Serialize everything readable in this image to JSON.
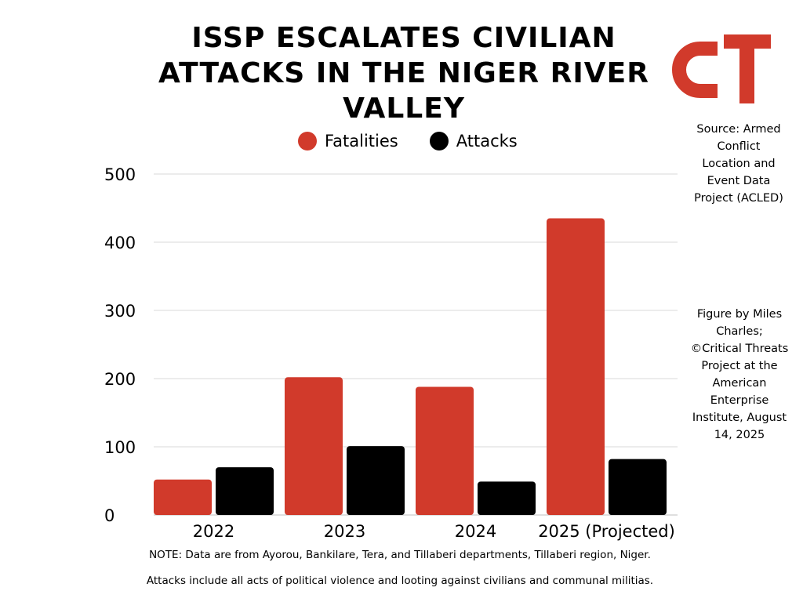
{
  "header": {
    "title": "ISSP ESCALATES CIVILIAN ATTACKS IN THE NIGER RIVER VALLEY"
  },
  "logo": {
    "text": "CT",
    "color": "#d13a2b"
  },
  "source_note": "Source: Armed Conflict Location and Event Data Project (ACLED)",
  "credit_note": "Figure by Miles Charles; ©Critical Threats Project at the American Enterprise Institute, August 14, 2025",
  "footnotes": {
    "line1": "NOTE: Data are from Ayorou, Bankilare, Tera, and Tillaberi departments, Tillaberi region, Niger.",
    "line2": "Attacks include all acts of political violence and looting against civilians and communal militias."
  },
  "chart_data": {
    "type": "bar",
    "title": "ISSP ESCALATES CIVILIAN ATTACKS IN THE NIGER RIVER VALLEY",
    "categories": [
      "2022",
      "2023",
      "2024",
      "2025 (Projected)"
    ],
    "series": [
      {
        "name": "Fatalities",
        "color": "#d13a2b",
        "values": [
          52,
          202,
          188,
          435
        ]
      },
      {
        "name": "Attacks",
        "color": "#000000",
        "values": [
          70,
          101,
          49,
          82
        ]
      }
    ],
    "ylim": [
      0,
      500
    ],
    "yticks": [
      0,
      100,
      200,
      300,
      400,
      500
    ],
    "grid": true,
    "legend": "top-center"
  }
}
